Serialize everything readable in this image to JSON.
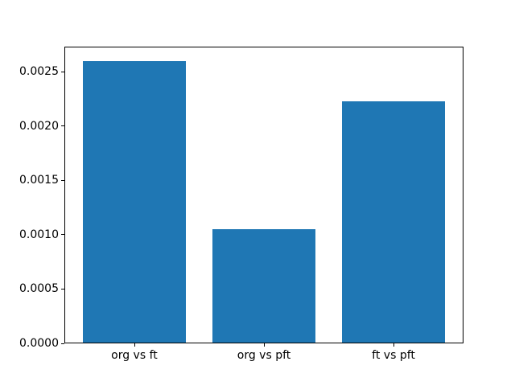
{
  "figure": {
    "background_color": "#ffffff",
    "spine_color": "#000000",
    "text_color": "#000000"
  },
  "chart_data": {
    "type": "bar",
    "title": "",
    "xlabel": "",
    "ylabel": "",
    "categories": [
      "org vs ft",
      "org vs pft",
      "ft vs pft"
    ],
    "values": [
      0.0026,
      0.00105,
      0.00223
    ],
    "bar_color": "#1f77b4",
    "bar_width_fraction": 0.8,
    "ylim": [
      0,
      0.002733
    ],
    "yticks": [
      0.0,
      0.0005,
      0.001,
      0.0015,
      0.002,
      0.0025
    ],
    "ytick_labels": [
      "0.0000",
      "0.0005",
      "0.0010",
      "0.0015",
      "0.0020",
      "0.0025"
    ],
    "grid": false,
    "legend": null
  }
}
